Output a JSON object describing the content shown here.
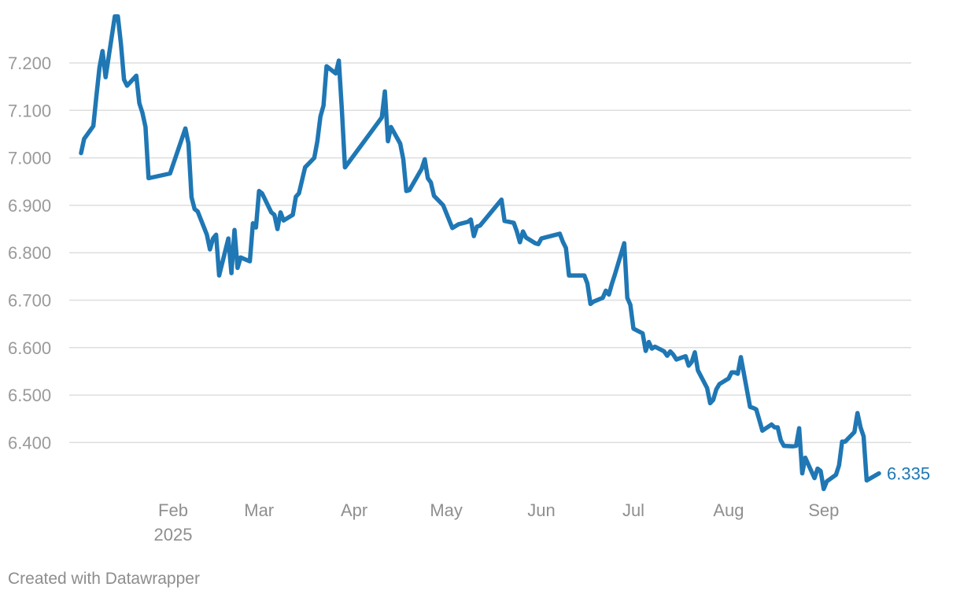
{
  "footer": {
    "credit": "Created with Datawrapper"
  },
  "chart_data": {
    "type": "line",
    "title": "",
    "xlabel": "",
    "ylabel": "",
    "y_ticks": [
      "6.400",
      "6.500",
      "6.600",
      "6.700",
      "6.800",
      "6.900",
      "7.000",
      "7.100",
      "7.200"
    ],
    "ylim": [
      6.3,
      7.3
    ],
    "grid": true,
    "x_ticks": [
      {
        "label": "Feb",
        "sub": "2025",
        "date": "2025-02-01"
      },
      {
        "label": "Mar",
        "date": "2025-03-01"
      },
      {
        "label": "Apr",
        "date": "2025-04-01"
      },
      {
        "label": "May",
        "date": "2025-05-01"
      },
      {
        "label": "Jun",
        "date": "2025-06-01"
      },
      {
        "label": "Jul",
        "date": "2025-07-01"
      },
      {
        "label": "Aug",
        "date": "2025-08-01"
      },
      {
        "label": "Sep",
        "date": "2025-09-01"
      }
    ],
    "series": [
      {
        "color": "#1f77b4",
        "end_label": "6.335",
        "points": [
          [
            "2025-01-02",
            7.01
          ],
          [
            "2025-01-03",
            7.04
          ],
          [
            "2025-01-06",
            7.067
          ],
          [
            "2025-01-07",
            7.13
          ],
          [
            "2025-01-08",
            7.19
          ],
          [
            "2025-01-09",
            7.225
          ],
          [
            "2025-01-10",
            7.17
          ],
          [
            "2025-01-13",
            7.298
          ],
          [
            "2025-01-14",
            7.298
          ],
          [
            "2025-01-15",
            7.24
          ],
          [
            "2025-01-16",
            7.165
          ],
          [
            "2025-01-17",
            7.152
          ],
          [
            "2025-01-20",
            7.173
          ],
          [
            "2025-01-21",
            7.115
          ],
          [
            "2025-01-22",
            7.095
          ],
          [
            "2025-01-23",
            7.065
          ],
          [
            "2025-01-24",
            6.957
          ],
          [
            "2025-01-31",
            6.967
          ],
          [
            "2025-02-05",
            7.062
          ],
          [
            "2025-02-06",
            7.03
          ],
          [
            "2025-02-07",
            6.917
          ],
          [
            "2025-02-08",
            6.892
          ],
          [
            "2025-02-09",
            6.887
          ],
          [
            "2025-02-12",
            6.838
          ],
          [
            "2025-02-13",
            6.807
          ],
          [
            "2025-02-14",
            6.83
          ],
          [
            "2025-02-15",
            6.838
          ],
          [
            "2025-02-16",
            6.752
          ],
          [
            "2025-02-19",
            6.83
          ],
          [
            "2025-02-20",
            6.757
          ],
          [
            "2025-02-21",
            6.848
          ],
          [
            "2025-02-22",
            6.768
          ],
          [
            "2025-02-23",
            6.79
          ],
          [
            "2025-02-26",
            6.782
          ],
          [
            "2025-02-27",
            6.862
          ],
          [
            "2025-02-28",
            6.853
          ],
          [
            "2025-03-01",
            6.93
          ],
          [
            "2025-03-02",
            6.925
          ],
          [
            "2025-03-05",
            6.885
          ],
          [
            "2025-03-06",
            6.88
          ],
          [
            "2025-03-07",
            6.85
          ],
          [
            "2025-03-08",
            6.885
          ],
          [
            "2025-03-09",
            6.868
          ],
          [
            "2025-03-12",
            6.88
          ],
          [
            "2025-03-13",
            6.918
          ],
          [
            "2025-03-14",
            6.925
          ],
          [
            "2025-03-16",
            6.98
          ],
          [
            "2025-03-19",
            7.0
          ],
          [
            "2025-03-20",
            7.035
          ],
          [
            "2025-03-21",
            7.087
          ],
          [
            "2025-03-22",
            7.11
          ],
          [
            "2025-03-23",
            7.193
          ],
          [
            "2025-03-26",
            7.178
          ],
          [
            "2025-03-27",
            7.205
          ],
          [
            "2025-03-28",
            7.1
          ],
          [
            "2025-03-29",
            6.98
          ],
          [
            "2025-04-10",
            7.085
          ],
          [
            "2025-04-11",
            7.14
          ],
          [
            "2025-04-12",
            7.035
          ],
          [
            "2025-04-13",
            7.065
          ],
          [
            "2025-04-16",
            7.03
          ],
          [
            "2025-04-17",
            6.997
          ],
          [
            "2025-04-18",
            6.93
          ],
          [
            "2025-04-19",
            6.932
          ],
          [
            "2025-04-23",
            6.977
          ],
          [
            "2025-04-24",
            6.997
          ],
          [
            "2025-04-25",
            6.957
          ],
          [
            "2025-04-26",
            6.948
          ],
          [
            "2025-04-27",
            6.92
          ],
          [
            "2025-04-30",
            6.9
          ],
          [
            "2025-05-03",
            6.852
          ],
          [
            "2025-05-05",
            6.86
          ],
          [
            "2025-05-08",
            6.865
          ],
          [
            "2025-05-09",
            6.87
          ],
          [
            "2025-05-10",
            6.835
          ],
          [
            "2025-05-11",
            6.855
          ],
          [
            "2025-05-12",
            6.857
          ],
          [
            "2025-05-19",
            6.912
          ],
          [
            "2025-05-20",
            6.867
          ],
          [
            "2025-05-23",
            6.863
          ],
          [
            "2025-05-24",
            6.845
          ],
          [
            "2025-05-25",
            6.822
          ],
          [
            "2025-05-26",
            6.845
          ],
          [
            "2025-05-27",
            6.832
          ],
          [
            "2025-05-30",
            6.82
          ],
          [
            "2025-05-31",
            6.818
          ],
          [
            "2025-06-01",
            6.83
          ],
          [
            "2025-06-07",
            6.84
          ],
          [
            "2025-06-08",
            6.823
          ],
          [
            "2025-06-09",
            6.81
          ],
          [
            "2025-06-10",
            6.752
          ],
          [
            "2025-06-15",
            6.752
          ],
          [
            "2025-06-16",
            6.735
          ],
          [
            "2025-06-17",
            6.692
          ],
          [
            "2025-06-18",
            6.697
          ],
          [
            "2025-06-21",
            6.705
          ],
          [
            "2025-06-22",
            6.72
          ],
          [
            "2025-06-23",
            6.712
          ],
          [
            "2025-06-24",
            6.735
          ],
          [
            "2025-06-25",
            6.755
          ],
          [
            "2025-06-28",
            6.82
          ],
          [
            "2025-06-29",
            6.705
          ],
          [
            "2025-06-30",
            6.69
          ],
          [
            "2025-07-01",
            6.64
          ],
          [
            "2025-07-04",
            6.63
          ],
          [
            "2025-07-05",
            6.593
          ],
          [
            "2025-07-06",
            6.612
          ],
          [
            "2025-07-07",
            6.598
          ],
          [
            "2025-07-08",
            6.602
          ],
          [
            "2025-07-11",
            6.592
          ],
          [
            "2025-07-12",
            6.583
          ],
          [
            "2025-07-13",
            6.592
          ],
          [
            "2025-07-14",
            6.585
          ],
          [
            "2025-07-15",
            6.575
          ],
          [
            "2025-07-18",
            6.582
          ],
          [
            "2025-07-19",
            6.562
          ],
          [
            "2025-07-20",
            6.57
          ],
          [
            "2025-07-21",
            6.59
          ],
          [
            "2025-07-22",
            6.552
          ],
          [
            "2025-07-25",
            6.515
          ],
          [
            "2025-07-26",
            6.483
          ],
          [
            "2025-07-27",
            6.49
          ],
          [
            "2025-07-28",
            6.512
          ],
          [
            "2025-07-29",
            6.523
          ],
          [
            "2025-08-01",
            6.535
          ],
          [
            "2025-08-02",
            6.548
          ],
          [
            "2025-08-03",
            6.548
          ],
          [
            "2025-08-04",
            6.545
          ],
          [
            "2025-08-05",
            6.58
          ],
          [
            "2025-08-06",
            6.545
          ],
          [
            "2025-08-08",
            6.475
          ],
          [
            "2025-08-09",
            6.473
          ],
          [
            "2025-08-10",
            6.47
          ],
          [
            "2025-08-11",
            6.448
          ],
          [
            "2025-08-12",
            6.425
          ],
          [
            "2025-08-15",
            6.438
          ],
          [
            "2025-08-16",
            6.432
          ],
          [
            "2025-08-17",
            6.432
          ],
          [
            "2025-08-18",
            6.405
          ],
          [
            "2025-08-19",
            6.393
          ],
          [
            "2025-08-22",
            6.392
          ],
          [
            "2025-08-23",
            6.393
          ],
          [
            "2025-08-24",
            6.43
          ],
          [
            "2025-08-25",
            6.335
          ],
          [
            "2025-08-26",
            6.368
          ],
          [
            "2025-08-29",
            6.325
          ],
          [
            "2025-08-30",
            6.345
          ],
          [
            "2025-08-31",
            6.34
          ],
          [
            "2025-09-01",
            6.302
          ],
          [
            "2025-09-02",
            6.318
          ],
          [
            "2025-09-05",
            6.332
          ],
          [
            "2025-09-06",
            6.352
          ],
          [
            "2025-09-07",
            6.402
          ],
          [
            "2025-09-08",
            6.402
          ],
          [
            "2025-09-11",
            6.422
          ],
          [
            "2025-09-12",
            6.462
          ],
          [
            "2025-09-13",
            6.432
          ],
          [
            "2025-09-14",
            6.413
          ],
          [
            "2025-09-15",
            6.32
          ],
          [
            "2025-09-19",
            6.335
          ]
        ]
      }
    ]
  }
}
